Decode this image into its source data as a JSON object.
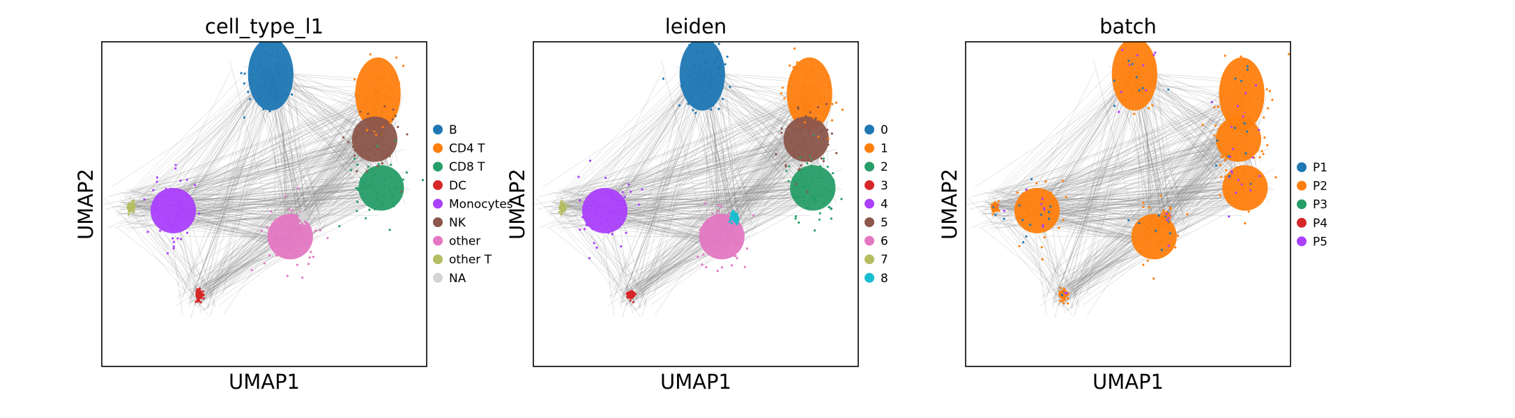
{
  "chart_data": [
    {
      "type": "scatter",
      "title": "cell_type_l1",
      "xlabel": "UMAP1",
      "ylabel": "UMAP2",
      "grid": false,
      "legend_position": "right",
      "color_by": "cell_type_l1",
      "categories": [
        {
          "name": "B",
          "color": "#1f77b4"
        },
        {
          "name": "CD4 T",
          "color": "#ff7f0e"
        },
        {
          "name": "CD8 T",
          "color": "#279e68"
        },
        {
          "name": "DC",
          "color": "#d62728"
        },
        {
          "name": "Monocytes",
          "color": "#aa40fc"
        },
        {
          "name": "NK",
          "color": "#8c564b"
        },
        {
          "name": "other",
          "color": "#e377c2"
        },
        {
          "name": "other T",
          "color": "#b5bd61"
        },
        {
          "name": "NA",
          "color": "#d3d3d3"
        }
      ]
    },
    {
      "type": "scatter",
      "title": "leiden",
      "xlabel": "UMAP1",
      "ylabel": "UMAP2",
      "grid": false,
      "legend_position": "right",
      "color_by": "leiden",
      "categories": [
        {
          "name": "0",
          "color": "#1f77b4"
        },
        {
          "name": "1",
          "color": "#ff7f0e"
        },
        {
          "name": "2",
          "color": "#279e68"
        },
        {
          "name": "3",
          "color": "#d62728"
        },
        {
          "name": "4",
          "color": "#aa40fc"
        },
        {
          "name": "5",
          "color": "#8c564b"
        },
        {
          "name": "6",
          "color": "#e377c2"
        },
        {
          "name": "7",
          "color": "#b5bd61"
        },
        {
          "name": "8",
          "color": "#17becf"
        }
      ]
    },
    {
      "type": "scatter",
      "title": "batch",
      "xlabel": "UMAP1",
      "ylabel": "UMAP2",
      "grid": false,
      "legend_position": "right",
      "color_by": "batch",
      "categories": [
        {
          "name": "P1",
          "color": "#1f77b4"
        },
        {
          "name": "P2",
          "color": "#ff7f0e"
        },
        {
          "name": "P3",
          "color": "#279e68"
        },
        {
          "name": "P4",
          "color": "#d62728"
        },
        {
          "name": "P5",
          "color": "#aa40fc"
        }
      ]
    }
  ],
  "cluster_centers": {
    "x": [
      0.52,
      0.85,
      0.86,
      0.3,
      0.22,
      0.84,
      0.58,
      0.09,
      0.62
    ],
    "y": [
      0.9,
      0.84,
      0.55,
      0.22,
      0.48,
      0.7,
      0.4,
      0.49,
      0.46
    ]
  },
  "edge_color": "#808080"
}
